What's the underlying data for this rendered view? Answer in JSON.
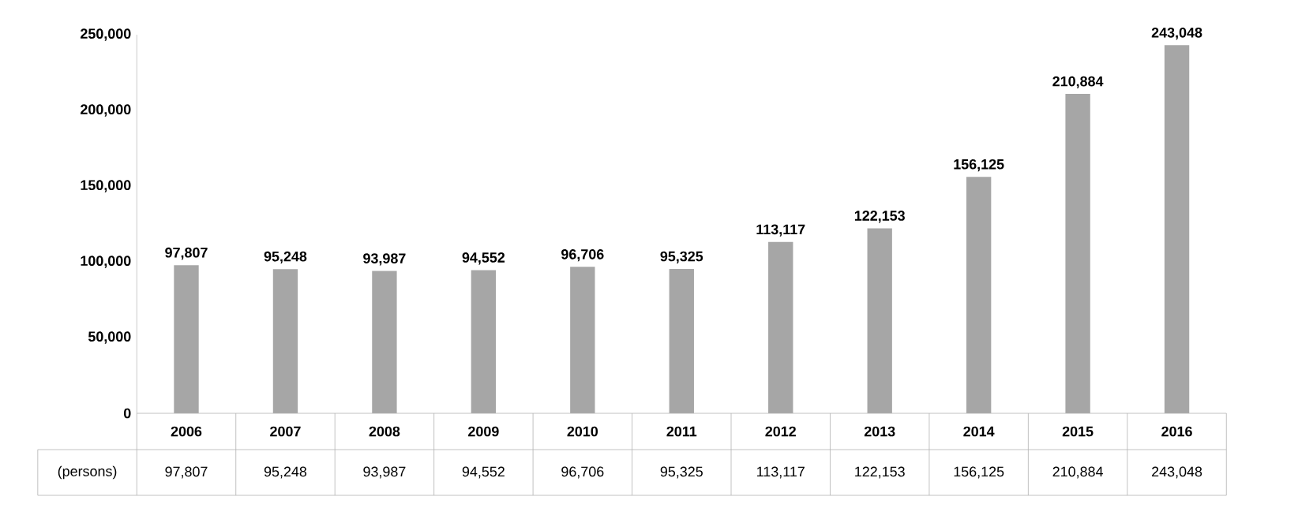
{
  "chart_data": {
    "type": "bar",
    "categories": [
      "2006",
      "2007",
      "2008",
      "2009",
      "2010",
      "2011",
      "2012",
      "2013",
      "2014",
      "2015",
      "2016"
    ],
    "values": [
      97807,
      95248,
      93987,
      94552,
      96706,
      95325,
      113117,
      122153,
      156125,
      210884,
      243048
    ],
    "value_labels": [
      "97,807",
      "95,248",
      "93,987",
      "94,552",
      "96,706",
      "95,325",
      "113,117",
      "122,153",
      "156,125",
      "210,884",
      "243,048"
    ],
    "color": "#a6a6a6",
    "ylim": [
      0,
      250000
    ],
    "yticks": [
      {
        "value": 0,
        "label": "0"
      },
      {
        "value": 50000,
        "label": "50,000"
      },
      {
        "value": 100000,
        "label": "100,000"
      },
      {
        "value": 150000,
        "label": "150,000"
      },
      {
        "value": 200000,
        "label": "200,000"
      },
      {
        "value": 250000,
        "label": "250,000"
      }
    ],
    "annotations": [
      "(persons)"
    ]
  }
}
